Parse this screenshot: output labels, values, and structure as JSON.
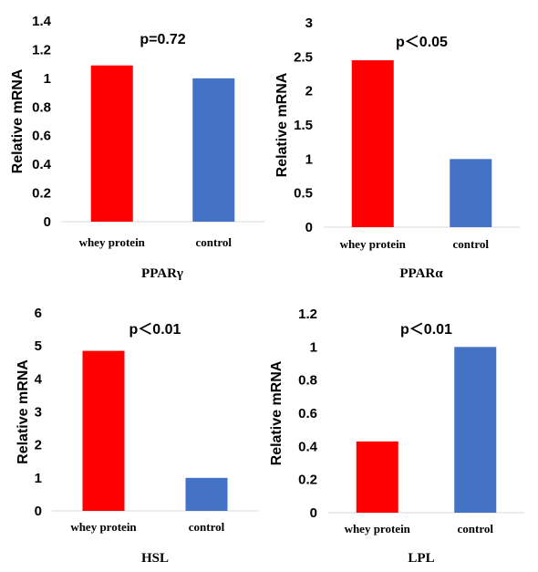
{
  "chart_data": [
    {
      "type": "bar",
      "title": "PPARγ",
      "annotation": "p=0.72",
      "ylabel": "Relative  mRNA",
      "categories": [
        "whey protein",
        "control"
      ],
      "values": [
        1.09,
        1.0
      ],
      "colors": [
        "#ff0000",
        "#4472c4"
      ],
      "ylim": [
        0,
        1.4
      ],
      "yticks": [
        "0",
        "0.2",
        "0.4",
        "0.6",
        "0.8",
        "1",
        "1.2",
        "1.4"
      ],
      "grid": false
    },
    {
      "type": "bar",
      "title": "PPARα",
      "annotation": "p＜0.05",
      "ylabel": "Relative  mRNA",
      "categories": [
        "whey protein",
        "control"
      ],
      "values": [
        2.45,
        1.0
      ],
      "colors": [
        "#ff0000",
        "#4472c4"
      ],
      "ylim": [
        0,
        3
      ],
      "yticks": [
        "0",
        "0.5",
        "1",
        "1.5",
        "2",
        "2.5",
        "3"
      ],
      "grid": false
    },
    {
      "type": "bar",
      "title": "HSL",
      "annotation": "p＜0.01",
      "ylabel": "Relative  mRNA",
      "categories": [
        "whey protein",
        "control"
      ],
      "values": [
        4.85,
        1.0
      ],
      "colors": [
        "#ff0000",
        "#4472c4"
      ],
      "ylim": [
        0,
        6
      ],
      "yticks": [
        "0",
        "1",
        "2",
        "3",
        "4",
        "5",
        "6"
      ],
      "grid": false
    },
    {
      "type": "bar",
      "title": "LPL",
      "annotation": "p＜0.01",
      "ylabel": "Relative  mRNA",
      "categories": [
        "whey protein",
        "control"
      ],
      "values": [
        0.43,
        1.0
      ],
      "colors": [
        "#ff0000",
        "#4472c4"
      ],
      "ylim": [
        0,
        1.2
      ],
      "yticks": [
        "0",
        "0.2",
        "0.4",
        "0.6",
        "0.8",
        "1",
        "1.2"
      ],
      "grid": false
    }
  ]
}
